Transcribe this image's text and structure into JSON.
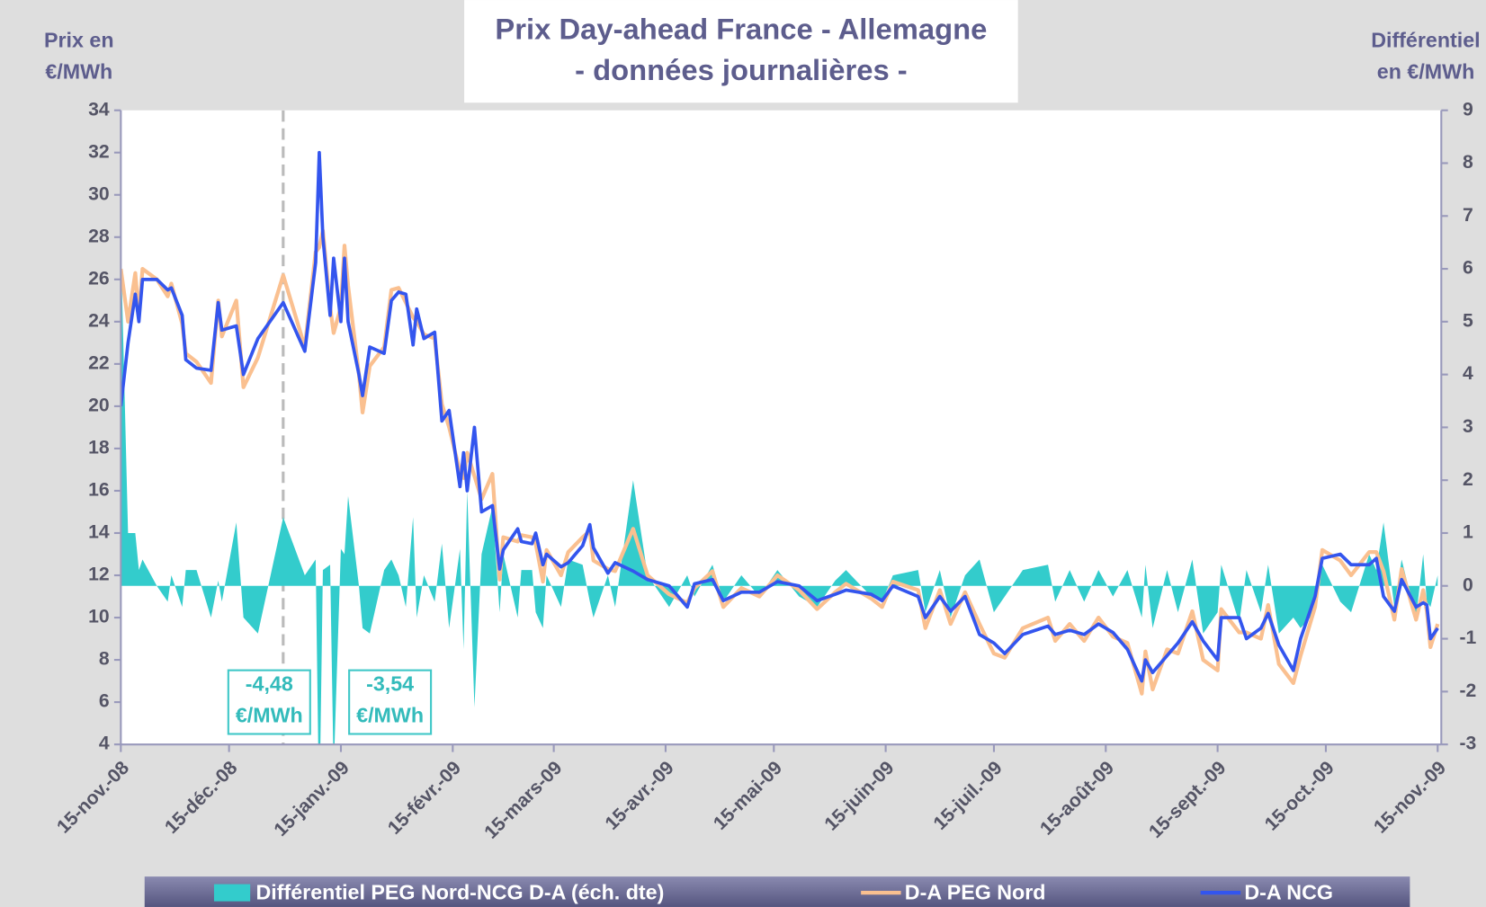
{
  "chart_data": {
    "type": "line",
    "title": [
      "Prix Day-ahead France - Allemagne",
      "- données journalières -"
    ],
    "y_label": [
      "Prix en",
      "€/MWh"
    ],
    "y2_label": [
      "Différentiel",
      "en €/MWh"
    ],
    "xlim": [
      "2008-11-15",
      "2009-11-16"
    ],
    "xticks": [
      {
        "value": "2008-11-15",
        "label": "15-nov.-08"
      },
      {
        "value": "2008-12-15",
        "label": "15-déc.-08"
      },
      {
        "value": "2009-01-15",
        "label": "15-janv.-09"
      },
      {
        "value": "2009-02-15",
        "label": "15-févr.-09"
      },
      {
        "value": "2009-03-15",
        "label": "15-mars-09"
      },
      {
        "value": "2009-04-15",
        "label": "15-avr.-09"
      },
      {
        "value": "2009-05-15",
        "label": "15-mai-09"
      },
      {
        "value": "2009-06-15",
        "label": "15-juin-09"
      },
      {
        "value": "2009-07-15",
        "label": "15-juil.-09"
      },
      {
        "value": "2009-08-15",
        "label": "15-août-09"
      },
      {
        "value": "2009-09-15",
        "label": "15-sept.-09"
      },
      {
        "value": "2009-10-15",
        "label": "15-oct.-09"
      },
      {
        "value": "2009-11-15",
        "label": "15-nov.-09"
      }
    ],
    "ylim": [
      4,
      34
    ],
    "yticks": [
      4,
      6,
      8,
      10,
      12,
      14,
      16,
      18,
      20,
      22,
      24,
      26,
      28,
      30,
      32,
      34
    ],
    "y2lim": [
      -3,
      9
    ],
    "y2ticks": [
      -3,
      -2,
      -1,
      0,
      1,
      2,
      3,
      4,
      5,
      6,
      7,
      8,
      9
    ],
    "vline": "2008-12-30",
    "legend": "bottom",
    "x": [
      "2008-11-15",
      "2008-11-17",
      "2008-11-19",
      "2008-11-20",
      "2008-11-21",
      "2008-11-25",
      "2008-11-28",
      "2008-11-29",
      "2008-12-02",
      "2008-12-03",
      "2008-12-06",
      "2008-12-10",
      "2008-12-12",
      "2008-12-13",
      "2008-12-17",
      "2008-12-19",
      "2008-12-23",
      "2008-12-30",
      "2009-01-05",
      "2009-01-08",
      "2009-01-09",
      "2009-01-10",
      "2009-01-12",
      "2009-01-13",
      "2009-01-15",
      "2009-01-16",
      "2009-01-17",
      "2009-01-20",
      "2009-01-21",
      "2009-01-23",
      "2009-01-27",
      "2009-01-29",
      "2009-01-31",
      "2009-02-02",
      "2009-02-04",
      "2009-02-05",
      "2009-02-07",
      "2009-02-10",
      "2009-02-12",
      "2009-02-14",
      "2009-02-17",
      "2009-02-18",
      "2009-02-19",
      "2009-02-21",
      "2009-02-23",
      "2009-02-26",
      "2009-02-28",
      "2009-03-01",
      "2009-03-05",
      "2009-03-06",
      "2009-03-09",
      "2009-03-10",
      "2009-03-12",
      "2009-03-13",
      "2009-03-17",
      "2009-03-19",
      "2009-03-23",
      "2009-03-25",
      "2009-03-26",
      "2009-03-30",
      "2009-04-01",
      "2009-04-06",
      "2009-04-10",
      "2009-04-16",
      "2009-04-21",
      "2009-04-23",
      "2009-04-28",
      "2009-05-01",
      "2009-05-06",
      "2009-05-11",
      "2009-05-16",
      "2009-05-22",
      "2009-05-27",
      "2009-06-01",
      "2009-06-04",
      "2009-06-11",
      "2009-06-14",
      "2009-06-17",
      "2009-06-24",
      "2009-06-26",
      "2009-06-30",
      "2009-07-03",
      "2009-07-07",
      "2009-07-11",
      "2009-07-15",
      "2009-07-18",
      "2009-07-23",
      "2009-07-30",
      "2009-08-01",
      "2009-08-05",
      "2009-08-09",
      "2009-08-13",
      "2009-08-17",
      "2009-08-21",
      "2009-08-25",
      "2009-08-26",
      "2009-08-28",
      "2009-09-01",
      "2009-09-04",
      "2009-09-08",
      "2009-09-11",
      "2009-09-15",
      "2009-09-16",
      "2009-09-21",
      "2009-09-23",
      "2009-09-27",
      "2009-09-29",
      "2009-10-02",
      "2009-10-06",
      "2009-10-08",
      "2009-10-12",
      "2009-10-14",
      "2009-10-19",
      "2009-10-22",
      "2009-10-27",
      "2009-10-29",
      "2009-10-31",
      "2009-11-03",
      "2009-11-05",
      "2009-11-09",
      "2009-11-11",
      "2009-11-12",
      "2009-11-13",
      "2009-11-15"
    ],
    "series": [
      {
        "name": "Différentiel PEG Nord-NCG D-A (éch. dte)",
        "type": "area",
        "axis": "y2",
        "color": "#33cccc",
        "values": [
          6.5,
          1.0,
          1.0,
          0.3,
          0.5,
          0.0,
          -0.3,
          0.2,
          -0.4,
          0.3,
          0.3,
          -0.6,
          0.1,
          -0.3,
          1.2,
          -0.6,
          -0.9,
          1.3,
          0.2,
          0.5,
          -4.48,
          0.3,
          0.4,
          -3.54,
          0.7,
          0.6,
          1.7,
          0.0,
          -0.8,
          -0.9,
          0.3,
          0.5,
          0.2,
          -0.4,
          1.3,
          -0.6,
          0.2,
          -0.3,
          0.8,
          -0.8,
          0.7,
          -1.2,
          1.8,
          -2.3,
          0.6,
          1.5,
          -0.5,
          0.6,
          -0.6,
          0.3,
          0.3,
          -0.5,
          -0.8,
          0.2,
          -0.4,
          0.5,
          0.4,
          -0.3,
          -0.6,
          0.2,
          -0.4,
          2.0,
          0.2,
          -0.4,
          0.2,
          -0.2,
          0.4,
          -0.3,
          0.2,
          -0.2,
          0.3,
          -0.2,
          -0.4,
          0.1,
          0.3,
          -0.2,
          -0.3,
          0.2,
          0.3,
          -0.5,
          0.3,
          -0.6,
          0.2,
          0.5,
          -0.5,
          -0.2,
          0.3,
          0.4,
          -0.3,
          0.3,
          -0.3,
          0.3,
          -0.2,
          0.3,
          -0.6,
          0.4,
          -0.8,
          0.3,
          -0.5,
          0.5,
          -0.9,
          -0.5,
          0.4,
          -0.7,
          0.3,
          -0.5,
          0.4,
          -0.9,
          -0.6,
          -0.8,
          -0.5,
          0.4,
          -0.3,
          -0.5,
          0.6,
          0.3,
          1.2,
          -0.4,
          0.5,
          -0.6,
          0.6,
          -0.3,
          -0.4,
          0.2
        ]
      },
      {
        "name": "D-A PEG Nord",
        "type": "line",
        "color": "#fac090",
        "values": [
          26.5,
          24.0,
          26.3,
          24.3,
          26.5,
          26.0,
          25.2,
          25.8,
          23.9,
          22.5,
          22.1,
          21.1,
          25.0,
          23.3,
          25.0,
          20.9,
          22.3,
          26.2,
          22.8,
          27.3,
          27.52,
          28.3,
          24.7,
          23.46,
          24.7,
          27.6,
          25.7,
          21.5,
          19.7,
          21.9,
          22.8,
          25.5,
          25.6,
          24.9,
          24.2,
          24.0,
          23.4,
          23.2,
          20.1,
          19.0,
          16.9,
          16.6,
          17.8,
          16.7,
          15.6,
          16.8,
          11.8,
          13.8,
          13.6,
          13.9,
          13.8,
          13.5,
          11.7,
          13.2,
          12.0,
          13.1,
          13.8,
          14.1,
          12.7,
          12.3,
          12.2,
          14.2,
          12.0,
          11.1,
          10.7,
          11.4,
          12.2,
          10.5,
          11.4,
          11.0,
          12.0,
          11.3,
          10.4,
          11.2,
          11.6,
          10.9,
          10.5,
          11.7,
          11.3,
          9.5,
          11.3,
          9.7,
          11.2,
          9.7,
          8.3,
          8.1,
          9.5,
          10.0,
          8.9,
          9.7,
          8.9,
          10.0,
          9.1,
          8.8,
          6.4,
          8.4,
          6.6,
          8.5,
          8.3,
          10.3,
          8.0,
          7.5,
          10.4,
          9.3,
          9.3,
          9.0,
          10.6,
          7.8,
          6.9,
          8.2,
          10.5,
          13.2,
          12.7,
          12.0,
          13.1,
          13.1,
          12.2,
          9.9,
          12.3,
          9.9,
          11.3,
          10.3,
          8.6,
          9.7
        ]
      },
      {
        "name": "D-A NCG",
        "type": "line",
        "color": "#3355ee",
        "values": [
          20.0,
          23.0,
          25.3,
          24.0,
          26.0,
          26.0,
          25.5,
          25.6,
          24.3,
          22.2,
          21.8,
          21.7,
          24.9,
          23.6,
          23.8,
          21.5,
          23.2,
          24.9,
          22.6,
          26.8,
          32.0,
          28.0,
          24.3,
          27.0,
          24.0,
          27.0,
          24.0,
          21.5,
          20.5,
          22.8,
          22.5,
          25.0,
          25.4,
          25.3,
          22.9,
          24.6,
          23.2,
          23.5,
          19.3,
          19.8,
          16.2,
          17.8,
          16.0,
          19.0,
          15.0,
          15.3,
          12.3,
          13.2,
          14.2,
          13.6,
          13.5,
          14.0,
          12.5,
          13.0,
          12.4,
          12.6,
          13.4,
          14.4,
          13.3,
          12.1,
          12.6,
          12.2,
          11.8,
          11.5,
          10.5,
          11.6,
          11.8,
          10.8,
          11.2,
          11.2,
          11.7,
          11.5,
          10.8,
          11.1,
          11.3,
          11.1,
          10.8,
          11.5,
          11.0,
          10.0,
          11.0,
          10.3,
          11.0,
          9.2,
          8.8,
          8.3,
          9.2,
          9.6,
          9.2,
          9.4,
          9.2,
          9.7,
          9.3,
          8.5,
          7.0,
          8.0,
          7.4,
          8.2,
          8.8,
          9.8,
          8.9,
          8.0,
          10.0,
          10.0,
          9.0,
          9.5,
          10.2,
          8.7,
          7.5,
          9.0,
          11.0,
          12.8,
          13.0,
          12.5,
          12.5,
          12.8,
          11.0,
          10.3,
          11.8,
          10.5,
          10.7,
          10.6,
          9.0,
          9.5
        ]
      }
    ],
    "annotations": [
      {
        "x": "2009-01-09",
        "lines": [
          "-4,48",
          "€/MWh"
        ]
      },
      {
        "x": "2009-01-13",
        "lines": [
          "-3,54",
          "€/MWh"
        ]
      }
    ]
  }
}
